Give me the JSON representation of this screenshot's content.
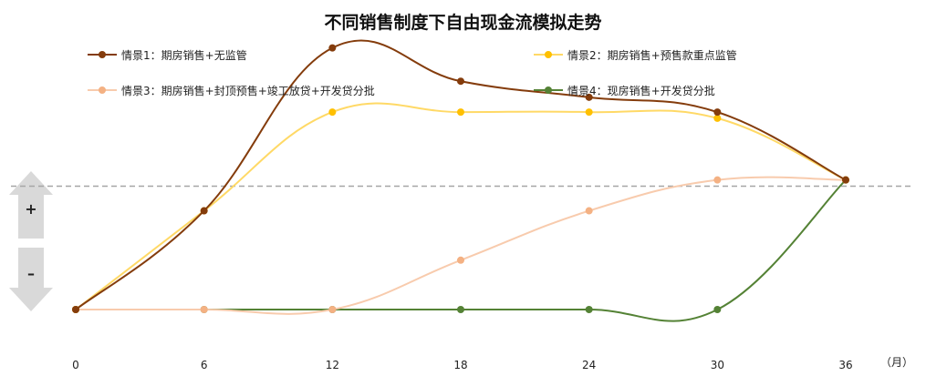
{
  "chart_data": {
    "type": "line",
    "title": "不同销售制度下自由现金流模拟走势",
    "x": [
      0,
      6,
      12,
      18,
      24,
      30,
      36
    ],
    "x_unit": "（月）",
    "y_indicators": {
      "positive": "+",
      "negative": "–"
    },
    "baseline": 0,
    "ylim": [
      -1,
      1.25
    ],
    "grid": false,
    "legend_position": "top",
    "series": [
      {
        "name": "情景1：期房销售+无监管",
        "color": "#843C0C",
        "values": [
          -1.0,
          -0.2,
          1.12,
          0.85,
          0.72,
          0.6,
          0.05
        ]
      },
      {
        "name": "情景2：期房销售+预售款重点监管",
        "color": "#FFD966",
        "marker_color": "#FFC000",
        "values": [
          -1.0,
          -0.2,
          0.6,
          0.6,
          0.6,
          0.55,
          0.05
        ]
      },
      {
        "name": "情景3：期房销售+封顶预售+竣工放贷+开发贷分批",
        "color": "#F8CBAD",
        "marker_color": "#F4B183",
        "values": [
          -1.0,
          -1.0,
          -1.0,
          -0.6,
          -0.2,
          0.05,
          0.05
        ]
      },
      {
        "name": "情景4：现房销售+开发贷分批",
        "color": "#548235",
        "values": [
          -1.0,
          -1.0,
          -1.0,
          -1.0,
          -1.0,
          -1.0,
          0.05
        ]
      }
    ]
  }
}
